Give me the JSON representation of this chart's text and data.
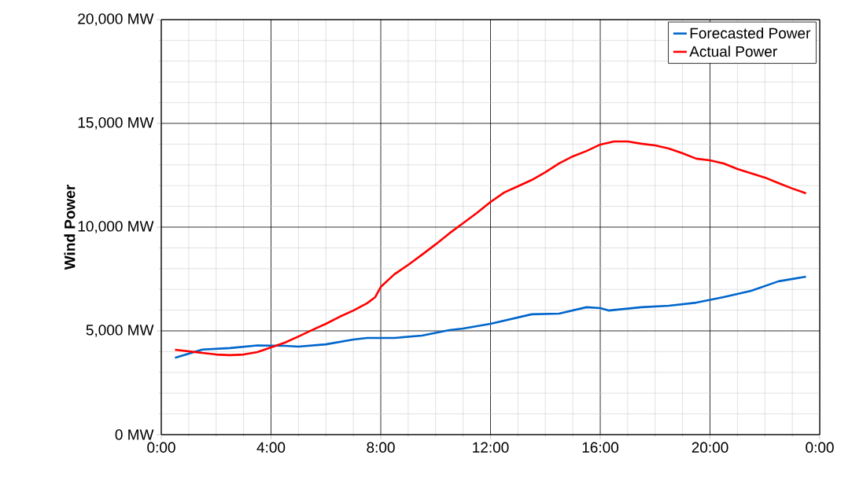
{
  "chart_data": {
    "type": "line",
    "ylabel": "Wind Power",
    "xlim": [
      0,
      24
    ],
    "xticks": [
      {
        "value": 0,
        "label": "0:00"
      },
      {
        "value": 4,
        "label": "4:00"
      },
      {
        "value": 8,
        "label": "8:00"
      },
      {
        "value": 12,
        "label": "12:00"
      },
      {
        "value": 16,
        "label": "16:00"
      },
      {
        "value": 20,
        "label": "20:00"
      },
      {
        "value": 24,
        "label": "0:00"
      }
    ],
    "ylim": [
      0,
      20000
    ],
    "yticks": [
      {
        "value": 0,
        "label": "0 MW"
      },
      {
        "value": 5000,
        "label": "5,000 MW"
      },
      {
        "value": 10000,
        "label": "10,000 MW"
      },
      {
        "value": 15000,
        "label": "15,000 MW"
      },
      {
        "value": 20000,
        "label": "20,000 MW"
      }
    ],
    "grid": true,
    "legend": "top right",
    "series": [
      {
        "name": "Forecasted Power",
        "color": "#0066cc",
        "x": [
          0.5,
          1.5,
          2.5,
          3.5,
          4.5,
          5,
          6,
          7,
          7.5,
          8.5,
          9.5,
          10.5,
          11,
          12,
          13.5,
          14.5,
          15.5,
          16,
          16.3,
          17.5,
          18.5,
          19.5,
          20.5,
          21.5,
          22.5,
          23.5
        ],
        "values": [
          3700,
          4100,
          4170,
          4300,
          4280,
          4240,
          4350,
          4580,
          4660,
          4660,
          4770,
          5040,
          5110,
          5340,
          5800,
          5830,
          6140,
          6100,
          5980,
          6140,
          6210,
          6360,
          6630,
          6930,
          7390,
          7610
        ]
      },
      {
        "name": "Actual Power",
        "color": "#ff0000",
        "x": [
          0.5,
          1.5,
          2,
          2.5,
          3,
          3.5,
          4,
          4.5,
          5,
          5.5,
          6,
          6.5,
          7,
          7.5,
          7.8,
          8,
          8.5,
          9,
          9.5,
          10,
          10.5,
          11,
          11.5,
          12,
          12.5,
          13,
          13.5,
          14,
          14.5,
          15,
          15.5,
          16,
          16.5,
          17,
          17.5,
          18,
          18.5,
          19,
          19.5,
          20,
          20.5,
          21,
          22,
          22.5,
          23,
          23.5
        ],
        "values": [
          4090,
          3940,
          3860,
          3830,
          3860,
          3980,
          4200,
          4430,
          4730,
          5040,
          5340,
          5680,
          5980,
          6330,
          6630,
          7120,
          7730,
          8180,
          8670,
          9170,
          9700,
          10190,
          10680,
          11210,
          11670,
          11970,
          12270,
          12650,
          13070,
          13410,
          13670,
          13980,
          14130,
          14130,
          14020,
          13940,
          13790,
          13560,
          13300,
          13220,
          13070,
          12800,
          12390,
          12120,
          11860,
          11630
        ]
      }
    ]
  }
}
